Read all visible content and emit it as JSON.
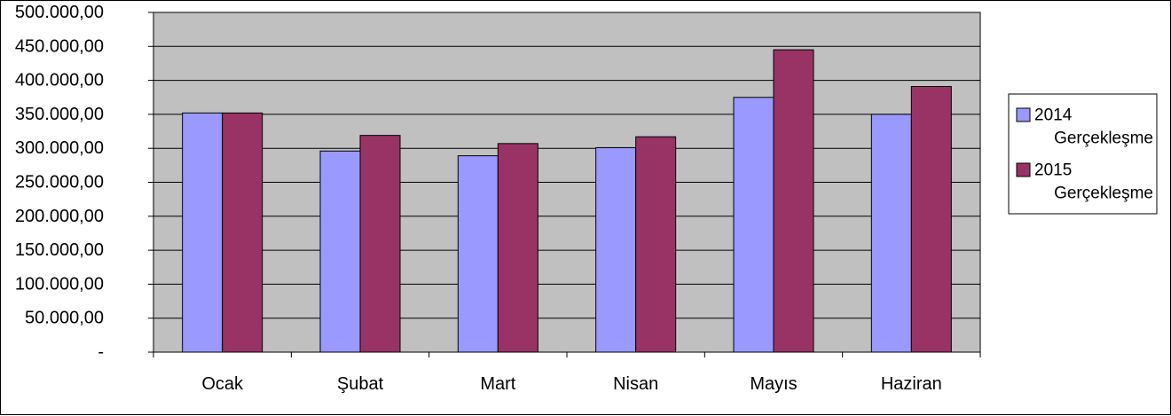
{
  "chart_data": {
    "type": "bar",
    "title": "",
    "xlabel": "",
    "ylabel": "",
    "categories": [
      "Ocak",
      "Şubat",
      "Mart",
      "Nisan",
      "Mayıs",
      "Haziran"
    ],
    "series": [
      {
        "name": "2014 Gerçekleşme",
        "legend_lines": [
          "2014",
          "Gerçekleşme"
        ],
        "color": "#9999ff",
        "values": [
          352000,
          296000,
          289000,
          301000,
          375000,
          350000
        ]
      },
      {
        "name": "2015 Gerçekleşme",
        "legend_lines": [
          "2015",
          "Gerçekleşme"
        ],
        "color": "#993366",
        "values": [
          352000,
          319000,
          307000,
          317000,
          445000,
          391000
        ]
      }
    ],
    "ylim": [
      0,
      500000
    ],
    "yticks": [
      0,
      50000,
      100000,
      150000,
      200000,
      250000,
      300000,
      350000,
      400000,
      450000,
      500000
    ],
    "ytick_labels": [
      "-",
      "50.000,00",
      "100.000,00",
      "150.000,00",
      "200.000,00",
      "250.000,00",
      "300.000,00",
      "350.000,00",
      "400.000,00",
      "450.000,00",
      "500.000,00"
    ],
    "grid": true,
    "plot_background": "#c0c0c0",
    "legend_position": "right"
  }
}
